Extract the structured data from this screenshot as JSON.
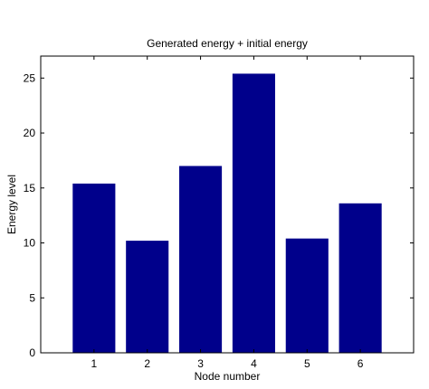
{
  "colors": {
    "bar": "#00008b",
    "axis": "#000000",
    "background": "#ffffff"
  },
  "chart_data": {
    "type": "bar",
    "title": "Generated energy + initial energy",
    "xlabel": "Node number",
    "ylabel": "Energy level",
    "categories": [
      "1",
      "2",
      "3",
      "4",
      "5",
      "6"
    ],
    "values": [
      15.4,
      10.2,
      17.0,
      25.4,
      10.4,
      13.6
    ],
    "xlim": [
      0,
      7
    ],
    "ylim": [
      0,
      27
    ],
    "yticks": [
      0,
      5,
      10,
      15,
      20,
      25
    ],
    "grid": false,
    "legend": "none"
  }
}
